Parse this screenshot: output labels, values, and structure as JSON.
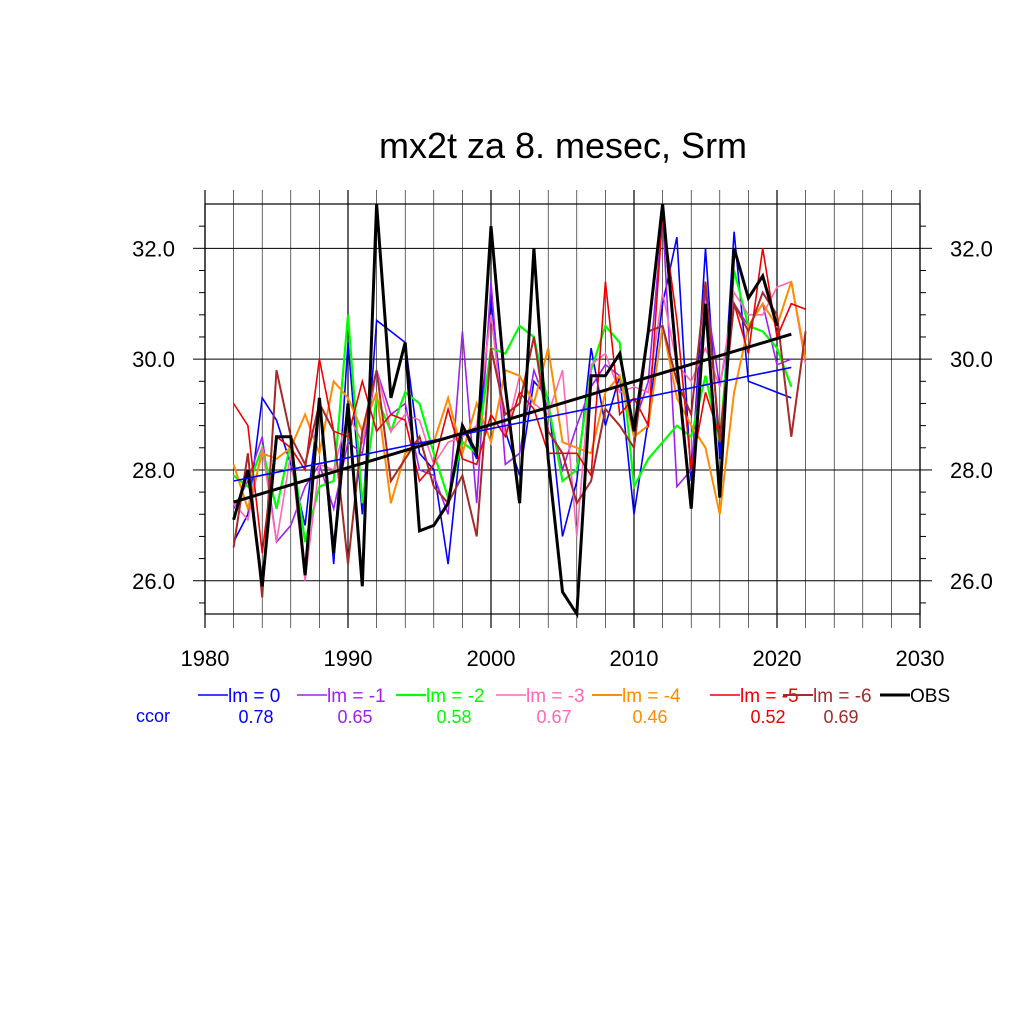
{
  "chart_data": {
    "type": "line",
    "title": "mx2t za 8. mesec, Srm",
    "xlabel": "",
    "ylabel": "",
    "xlim": [
      1980,
      2030
    ],
    "ylim": [
      25.4,
      32.8
    ],
    "x_ticks": [
      "1980",
      "1990",
      "2000",
      "2010",
      "2020",
      "2030"
    ],
    "y_ticks": [
      "26.0",
      "28.0",
      "30.0",
      "32.0"
    ],
    "grid": true,
    "legend_position": "bottom",
    "ccor_label": "ccor",
    "series": [
      {
        "name": "lm = 0",
        "color": "#0000ff",
        "ccor": "0.78",
        "width": 1.6,
        "start": 1982,
        "values": [
          26.7,
          27.2,
          29.3,
          28.9,
          28.1,
          27.0,
          29.3,
          26.3,
          30.3,
          27.2,
          30.7,
          30.5,
          30.3,
          28.3,
          28.0,
          26.3,
          28.8,
          28.2,
          31.1,
          28.7,
          27.9,
          29.6,
          29.3,
          26.8,
          27.8,
          30.2,
          28.8,
          29.7,
          27.2,
          28.9,
          31.0,
          32.2,
          27.8,
          32.0,
          28.2,
          32.3,
          29.6,
          29.5,
          29.4,
          29.3
        ],
        "trend": [
          27.8,
          29.85
        ]
      },
      {
        "name": "lm = -1",
        "color": "#a020f0",
        "ccor": "0.65",
        "width": 1.6,
        "start": 1982,
        "values": [
          27.3,
          27.8,
          28.6,
          26.7,
          27.0,
          27.7,
          28.1,
          27.3,
          28.5,
          28.3,
          29.8,
          29.0,
          29.2,
          28.0,
          27.9,
          27.2,
          30.5,
          27.4,
          31.4,
          28.1,
          28.3,
          29.8,
          29.1,
          28.0,
          28.8,
          29.5,
          29.9,
          29.7,
          28.8,
          29.6,
          32.6,
          27.7,
          28.0,
          31.2,
          29.5,
          31.0,
          30.6,
          31.0,
          29.9,
          30.0
        ]
      },
      {
        "name": "lm = -2",
        "color": "#00ff00",
        "ccor": "0.58",
        "width": 2.2,
        "start": 1982,
        "values": [
          27.9,
          27.7,
          28.4,
          27.3,
          28.5,
          26.7,
          27.7,
          27.8,
          30.8,
          27.4,
          29.3,
          28.7,
          29.4,
          29.2,
          28.3,
          27.5,
          28.5,
          28.3,
          30.2,
          30.1,
          30.6,
          30.4,
          29.2,
          27.8,
          28.0,
          29.8,
          30.6,
          30.3,
          27.7,
          28.2,
          28.5,
          28.8,
          28.6,
          29.7,
          28.5,
          31.6,
          30.6,
          30.5,
          30.2,
          29.5
        ]
      },
      {
        "name": "lm = -3",
        "color": "#ff69b4",
        "ccor": "0.67",
        "width": 1.6,
        "start": 1982,
        "values": [
          27.4,
          27.1,
          28.4,
          26.7,
          28.3,
          26.0,
          28.1,
          28.0,
          29.0,
          28.5,
          29.8,
          28.7,
          29.0,
          28.9,
          28.1,
          28.5,
          28.6,
          28.8,
          30.8,
          28.6,
          29.7,
          29.2,
          29.0,
          29.8,
          26.8,
          29.9,
          30.1,
          29.4,
          29.5,
          29.4,
          31.2,
          29.9,
          29.6,
          30.2,
          29.5,
          31.2,
          30.8,
          30.8,
          31.3,
          31.4,
          29.9
        ]
      },
      {
        "name": "lm = -4",
        "color": "#ff8c00",
        "ccor": "0.46",
        "width": 2.0,
        "start": 1982,
        "values": [
          28.1,
          27.3,
          28.3,
          28.2,
          28.4,
          29.0,
          28.3,
          29.6,
          29.3,
          28.7,
          29.4,
          27.4,
          28.3,
          28.5,
          28.5,
          29.3,
          28.3,
          29.2,
          28.5,
          29.8,
          29.7,
          29.2,
          30.2,
          28.5,
          28.4,
          28.3,
          29.4,
          29.7,
          28.6,
          28.8,
          30.6,
          29.3,
          28.8,
          28.4,
          27.2,
          29.4,
          30.6,
          31.0,
          30.6,
          31.4,
          30.0
        ]
      },
      {
        "name": "lm = -5",
        "color": "#ee0000",
        "ccor": "0.52",
        "width": 1.6,
        "start": 1982,
        "values": [
          29.2,
          28.8,
          26.5,
          28.6,
          28.4,
          28.0,
          30.0,
          28.7,
          28.6,
          29.6,
          28.7,
          29.0,
          28.9,
          27.8,
          28.1,
          29.1,
          28.2,
          28.1,
          29.0,
          28.6,
          29.4,
          29.1,
          28.3,
          28.3,
          28.3,
          27.9,
          31.4,
          29.0,
          29.3,
          28.8,
          32.6,
          30.7,
          28.0,
          29.4,
          28.6,
          31.0,
          30.1,
          32.0,
          30.4,
          31.0,
          30.9
        ]
      },
      {
        "name": "lm = -6",
        "color": "#a52a2a",
        "ccor": "0.69",
        "width": 2.0,
        "start": 1982,
        "values": [
          26.6,
          28.3,
          25.7,
          29.8,
          28.6,
          28.1,
          29.2,
          28.7,
          26.3,
          28.7,
          29.8,
          27.8,
          28.2,
          28.6,
          27.7,
          27.4,
          27.9,
          26.8,
          30.2,
          29.0,
          29.2,
          30.4,
          28.7,
          28.3,
          27.4,
          27.8,
          29.1,
          28.8,
          28.4,
          30.5,
          30.6,
          29.6,
          29.0,
          31.4,
          28.5,
          31.0,
          30.5,
          31.2,
          30.8,
          28.6,
          30.5
        ]
      },
      {
        "name": "OBS",
        "color": "#000000",
        "ccor": "",
        "width": 3.0,
        "start": 1982,
        "values": [
          27.1,
          28.0,
          25.9,
          28.6,
          28.6,
          26.1,
          29.3,
          26.5,
          29.2,
          25.9,
          32.8,
          29.3,
          30.3,
          26.9,
          27.0,
          27.4,
          28.8,
          28.3,
          32.4,
          29.5,
          27.4,
          32.0,
          28.2,
          25.8,
          25.4,
          29.7,
          29.7,
          30.1,
          28.7,
          30.5,
          32.8,
          29.9,
          27.3,
          31.0,
          27.5,
          32.0,
          31.1,
          31.5,
          30.6
        ],
        "trend": [
          27.42,
          30.45
        ]
      }
    ]
  }
}
